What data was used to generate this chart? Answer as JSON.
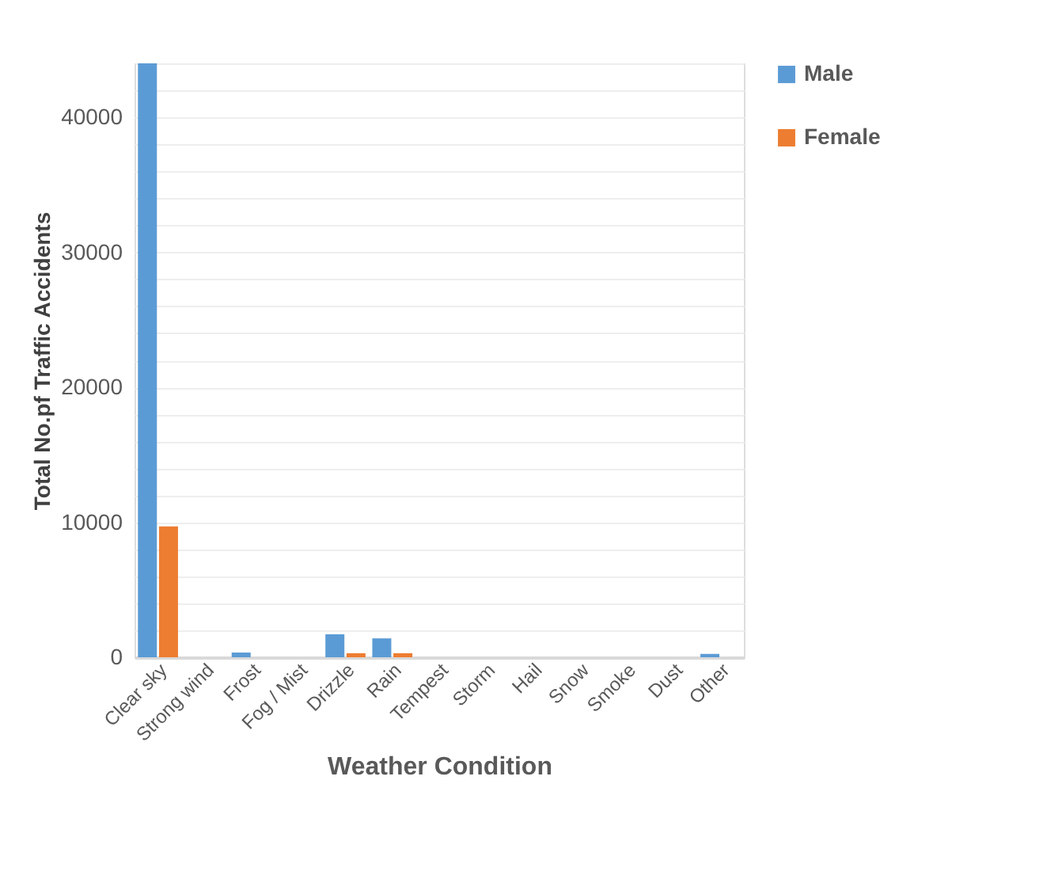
{
  "chart_data": {
    "type": "bar",
    "xlabel": "Weather Condition",
    "ylabel": "Total No.pf Traffic Accidents",
    "categories": [
      "Clear sky",
      "Strong wind",
      "Frost",
      "Fog / Mist",
      "Drizzle",
      "Rain",
      "Tempest",
      "Storm",
      "Hail",
      "Snow",
      "Smoke",
      "Dust",
      "Other"
    ],
    "series": [
      {
        "name": "Male",
        "color": "#5b9bd5",
        "values": [
          44000,
          0,
          350,
          0,
          1700,
          1400,
          0,
          0,
          0,
          0,
          0,
          0,
          250
        ]
      },
      {
        "name": "Female",
        "color": "#ed7d31",
        "values": [
          9700,
          0,
          0,
          0,
          300,
          300,
          0,
          0,
          0,
          0,
          0,
          0,
          0
        ]
      }
    ],
    "ylim": [
      0,
      44000
    ],
    "yticks": [
      0,
      {
        "value": 2000,
        "label": null
      },
      {
        "value": 4000,
        "label": null
      },
      {
        "value": 6000,
        "label": null
      },
      {
        "value": 8000,
        "label": null
      },
      10000,
      {
        "value": 12000,
        "label": null
      },
      {
        "value": 14000,
        "label": null
      },
      {
        "value": 16000,
        "label": null
      },
      {
        "value": 18000,
        "label": null
      },
      20000,
      {
        "value": 22000,
        "label": null
      },
      {
        "value": 24000,
        "label": null
      },
      {
        "value": 26000,
        "label": null
      },
      {
        "value": 28000,
        "label": null
      },
      30000,
      {
        "value": 32000,
        "label": null
      },
      {
        "value": 34000,
        "label": null
      },
      {
        "value": 36000,
        "label": null
      },
      {
        "value": 38000,
        "label": null
      },
      40000,
      {
        "value": 42000,
        "label": null
      },
      {
        "value": 44000,
        "label": null
      }
    ],
    "grid": "y",
    "legend": "right"
  }
}
